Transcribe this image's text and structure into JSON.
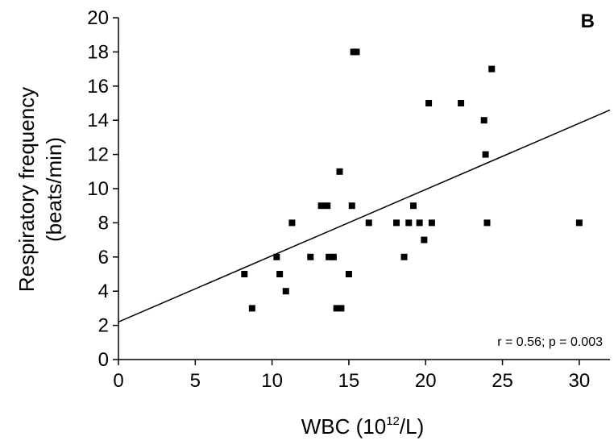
{
  "chart_data": {
    "type": "scatter",
    "panel_label": "B",
    "xlabel_main": "WBC (10",
    "xlabel_sup": "12",
    "xlabel_tail": "/L)",
    "ylabel_line1": "Respiratory frequency",
    "ylabel_line2": "(beats/min)",
    "xlim": [
      0,
      32
    ],
    "ylim": [
      0,
      20
    ],
    "x_ticks": [
      0,
      5,
      10,
      15,
      20,
      25,
      30
    ],
    "y_ticks": [
      0,
      2,
      4,
      6,
      8,
      10,
      12,
      14,
      16,
      18,
      20
    ],
    "grid": false,
    "annotation": "r = 0.56; p = 0.003",
    "series": [
      {
        "points": [
          {
            "x": 8.2,
            "y": 5
          },
          {
            "x": 8.7,
            "y": 3
          },
          {
            "x": 10.3,
            "y": 6
          },
          {
            "x": 10.5,
            "y": 5
          },
          {
            "x": 10.9,
            "y": 4
          },
          {
            "x": 11.3,
            "y": 8
          },
          {
            "x": 12.5,
            "y": 6
          },
          {
            "x": 13.2,
            "y": 9
          },
          {
            "x": 13.6,
            "y": 9
          },
          {
            "x": 13.7,
            "y": 6
          },
          {
            "x": 14.0,
            "y": 6
          },
          {
            "x": 14.2,
            "y": 3
          },
          {
            "x": 14.5,
            "y": 3
          },
          {
            "x": 14.4,
            "y": 11
          },
          {
            "x": 15.0,
            "y": 5
          },
          {
            "x": 15.2,
            "y": 9
          },
          {
            "x": 15.3,
            "y": 18
          },
          {
            "x": 15.5,
            "y": 18
          },
          {
            "x": 16.3,
            "y": 8
          },
          {
            "x": 18.1,
            "y": 8
          },
          {
            "x": 18.6,
            "y": 6
          },
          {
            "x": 18.9,
            "y": 8
          },
          {
            "x": 19.2,
            "y": 9
          },
          {
            "x": 19.6,
            "y": 8
          },
          {
            "x": 19.9,
            "y": 7
          },
          {
            "x": 20.2,
            "y": 15
          },
          {
            "x": 20.4,
            "y": 8
          },
          {
            "x": 22.3,
            "y": 15
          },
          {
            "x": 23.8,
            "y": 14
          },
          {
            "x": 23.9,
            "y": 12
          },
          {
            "x": 24.0,
            "y": 8
          },
          {
            "x": 24.3,
            "y": 17
          },
          {
            "x": 30.0,
            "y": 8
          }
        ]
      }
    ],
    "regression_line": {
      "x": [
        0,
        32
      ],
      "y": [
        2.2,
        14.6
      ]
    }
  }
}
